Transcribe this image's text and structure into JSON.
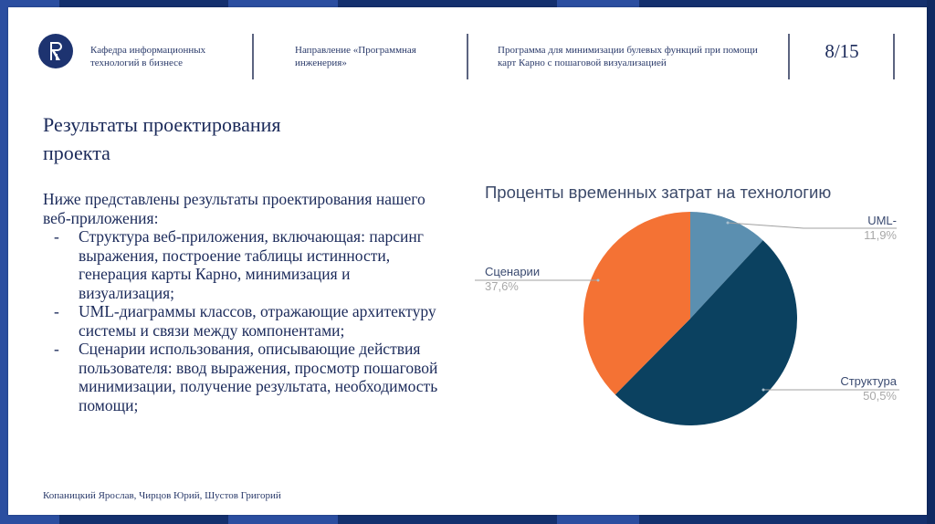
{
  "header": {
    "department": "Кафедра информационных технологий в бизнесе",
    "direction": "Направление «Программная инженерия»",
    "program": "Программа для минимизации булевых функций при помощи карт Карно с пошаговой визуализацией",
    "page_number": "8/15",
    "logo_icon": "hse-university-logo"
  },
  "slide": {
    "title": "Результаты проектирования проекта",
    "intro": "Ниже представлены результаты проектирования нашего веб-приложения:",
    "bullets": [
      {
        "dash": "-",
        "text": "Структура веб-приложения, включающая: парсинг выражения, построение таблицы истинности, генерация карты Карно, минимизация и визуализация;"
      },
      {
        "dash": "-",
        "text": "UML-диаграммы классов, отражающие архитектуру системы и связи между компонентами;"
      },
      {
        "dash": "-",
        "text": "Сценарии использования, описывающие действия пользователя: ввод выражения, просмотр пошаговой минимизации, получение результата, необходимость помощи;"
      }
    ]
  },
  "footer": {
    "authors": "Копаницкий Ярослав, Чирцов Юрий, Шустов Григорий"
  },
  "colors": {
    "frame_dark": "#14306e",
    "frame_light": "#2b4ea0",
    "uml": "#5b8fb0",
    "structure": "#0b4160",
    "scenarios": "#f47234"
  },
  "chart_data": {
    "type": "pie",
    "title": "Проценты временных затрат на технологию",
    "categories": [
      "UML-",
      "Структура",
      "Сценарии"
    ],
    "values": [
      11.9,
      50.5,
      37.6
    ],
    "value_labels": [
      "11,9%",
      "50,5%",
      "37,6%"
    ],
    "colors": [
      "#5b8fb0",
      "#0b4160",
      "#f47234"
    ],
    "start_angle": "12 o'clock, clockwise",
    "legend": "external labels with leader lines"
  }
}
